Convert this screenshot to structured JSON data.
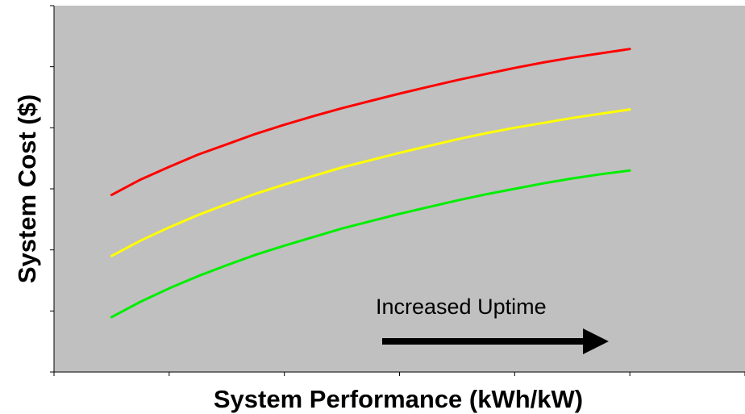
{
  "chart_data": {
    "type": "line",
    "title": "",
    "xlabel": "System Performance (kWh/kW)",
    "ylabel": "System Cost ($)",
    "xlim": [
      0,
      6
    ],
    "ylim": [
      0,
      6
    ],
    "grid": false,
    "plot_background": "#c0c0c0",
    "tick_labels_shown": false,
    "x": [
      0.5,
      0.75,
      1.0,
      1.25,
      1.5,
      1.75,
      2.0,
      2.25,
      2.5,
      2.75,
      3.0,
      3.25,
      3.5,
      3.75,
      4.0,
      4.25,
      4.5,
      4.75,
      5.0
    ],
    "series": [
      {
        "color": "#ff0000",
        "values": [
          2.9,
          3.15,
          3.36,
          3.56,
          3.73,
          3.9,
          4.05,
          4.19,
          4.32,
          4.44,
          4.56,
          4.67,
          4.78,
          4.88,
          4.98,
          5.07,
          5.15,
          5.22,
          5.29
        ]
      },
      {
        "color": "#ffff00",
        "values": [
          1.9,
          2.15,
          2.37,
          2.57,
          2.75,
          2.92,
          3.07,
          3.21,
          3.35,
          3.47,
          3.59,
          3.7,
          3.81,
          3.91,
          4.0,
          4.08,
          4.16,
          4.23,
          4.3
        ]
      },
      {
        "color": "#00ee00",
        "values": [
          0.9,
          1.15,
          1.37,
          1.57,
          1.75,
          1.92,
          2.07,
          2.21,
          2.35,
          2.47,
          2.59,
          2.7,
          2.81,
          2.91,
          3.0,
          3.09,
          3.17,
          3.24,
          3.3
        ]
      }
    ],
    "annotations": [
      {
        "text": "Increased Uptime",
        "arrow": "right"
      }
    ]
  }
}
